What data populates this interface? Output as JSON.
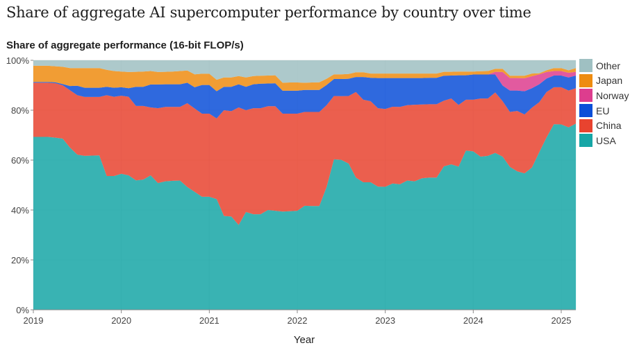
{
  "chart_data": {
    "type": "area",
    "stacked": true,
    "title": "Share of aggregate AI supercomputer performance by country over time",
    "ylabel": "Share of aggregate performance (16-bit FLOP/s)",
    "xlabel": "Year",
    "ylim": [
      0,
      100
    ],
    "xlim": [
      "2019-01",
      "2025-03"
    ],
    "yticks": [
      "0%",
      "20%",
      "40%",
      "60%",
      "80%",
      "100%"
    ],
    "xticks": [
      "2019",
      "2020",
      "2021",
      "2022",
      "2023",
      "2024",
      "2025"
    ],
    "grid": true,
    "legend_position": "right",
    "x_start": "2019-01",
    "x_step": "1 month",
    "series": [
      {
        "name": "USA",
        "color": "#16a6a6",
        "values": [
          69.3,
          69.3,
          69.3,
          69.0,
          68.6,
          65.0,
          62.2,
          61.7,
          61.8,
          61.9,
          53.6,
          53.6,
          54.5,
          53.9,
          51.9,
          52.2,
          53.9,
          50.8,
          51.5,
          51.7,
          51.8,
          49.2,
          47.3,
          45.3,
          45.3,
          44.4,
          37.6,
          37.4,
          34.0,
          39.2,
          38.3,
          38.3,
          40.0,
          39.7,
          39.4,
          39.5,
          39.7,
          41.7,
          41.6,
          41.6,
          49.2,
          60.3,
          60.1,
          58.6,
          53.0,
          51.1,
          51.1,
          49.4,
          49.3,
          50.6,
          50.3,
          51.8,
          51.5,
          52.7,
          53.0,
          53.0,
          57.5,
          58.3,
          57.4,
          63.8,
          63.5,
          61.4,
          61.7,
          62.9,
          61.4,
          57.3,
          55.5,
          54.7,
          57.0,
          63.1,
          69.1,
          74.4,
          74.3,
          73.1,
          74.6
        ]
      },
      {
        "name": "China",
        "color": "#e8432f",
        "values": [
          21.7,
          21.7,
          21.7,
          21.8,
          21.4,
          23.0,
          23.8,
          23.6,
          23.5,
          23.4,
          32.4,
          31.8,
          31.3,
          31.5,
          29.8,
          29.5,
          27.2,
          30.0,
          29.8,
          29.6,
          29.5,
          33.6,
          33.4,
          33.3,
          33.3,
          32.3,
          42.4,
          42.2,
          47.1,
          40.8,
          42.5,
          42.5,
          41.6,
          41.9,
          39.2,
          39.1,
          38.9,
          37.6,
          37.7,
          37.7,
          32.8,
          25.4,
          25.5,
          27.1,
          34.3,
          33.1,
          32.5,
          31.4,
          31.2,
          30.8,
          31.0,
          30.2,
          30.7,
          29.6,
          29.4,
          29.4,
          26.3,
          26.4,
          24.7,
          20.4,
          20.7,
          23.3,
          23.0,
          24.2,
          22.2,
          22.0,
          24.2,
          23.6,
          24.0,
          20.1,
          18.2,
          14.8,
          14.9,
          14.8,
          14.2
        ]
      },
      {
        "name": "EU",
        "color": "#0a4fd8",
        "values": [
          0.3,
          0.3,
          0.3,
          0.4,
          0.5,
          1.7,
          3.8,
          3.7,
          3.7,
          3.7,
          3.4,
          3.6,
          3.4,
          3.4,
          7.7,
          7.7,
          9.2,
          9.5,
          9.1,
          9.1,
          9.1,
          8.2,
          8.5,
          11.5,
          11.5,
          10.9,
          9.4,
          9.8,
          9.3,
          9.4,
          9.6,
          9.8,
          9.1,
          9.2,
          9.2,
          9.2,
          9.2,
          8.8,
          8.8,
          8.8,
          8.1,
          6.8,
          6.9,
          6.9,
          6.0,
          9.1,
          9.4,
          12.1,
          12.4,
          11.5,
          11.6,
          10.9,
          10.7,
          10.6,
          10.6,
          10.6,
          10.0,
          9.2,
          11.9,
          9.8,
          10.1,
          9.6,
          9.6,
          7.2,
          6.3,
          8.6,
          8.2,
          9.3,
          7.8,
          7.2,
          5.4,
          4.7,
          4.7,
          5.2,
          5.1
        ]
      },
      {
        "name": "Norway",
        "color": "#dd3d8e",
        "values": [
          0,
          0,
          0,
          0,
          0,
          0,
          0,
          0,
          0,
          0,
          0,
          0,
          0,
          0,
          0,
          0,
          0,
          0,
          0,
          0,
          0,
          0,
          0,
          0,
          0,
          0,
          0,
          0,
          0,
          0,
          0,
          0,
          0,
          0,
          0,
          0,
          0,
          0,
          0,
          0,
          0,
          0,
          0,
          0,
          0,
          0,
          0,
          0,
          0,
          0,
          0,
          0,
          0,
          0,
          0,
          0,
          0,
          0,
          0,
          0,
          0,
          0,
          0,
          1.1,
          5.4,
          5.0,
          5.0,
          5.2,
          4.8,
          4.0,
          2.6,
          1.8,
          1.8,
          1.9,
          1.5
        ]
      },
      {
        "name": "Japan",
        "color": "#ee8c10",
        "values": [
          6.5,
          6.5,
          6.5,
          6.4,
          6.9,
          7.2,
          7.1,
          7.9,
          7.9,
          7.9,
          6.8,
          6.7,
          6.3,
          6.5,
          6.0,
          6.1,
          5.4,
          5.0,
          5.0,
          5.1,
          5.3,
          4.9,
          5.2,
          4.5,
          4.5,
          4.6,
          3.7,
          3.7,
          3.3,
          3.7,
          3.3,
          3.2,
          3.2,
          3.2,
          3.2,
          3.3,
          3.3,
          2.9,
          3.0,
          3.1,
          2.5,
          1.9,
          1.9,
          1.9,
          1.9,
          1.9,
          1.7,
          1.8,
          1.8,
          1.8,
          1.8,
          1.8,
          1.8,
          1.8,
          1.7,
          1.7,
          1.6,
          1.5,
          1.5,
          1.5,
          1.2,
          1.3,
          1.4,
          1.2,
          1.3,
          0.9,
          0.9,
          1.0,
          1.1,
          0.4,
          0.7,
          1.2,
          1.2,
          1.0,
          1.5
        ]
      },
      {
        "name": "Other",
        "color": "#9fc0c2",
        "values": [
          2.2,
          2.2,
          2.2,
          2.4,
          2.6,
          3.1,
          3.1,
          3.1,
          3.1,
          3.1,
          3.8,
          4.3,
          4.5,
          4.7,
          4.6,
          4.5,
          4.3,
          4.7,
          4.6,
          4.5,
          4.3,
          4.1,
          5.6,
          5.4,
          5.4,
          7.8,
          6.9,
          6.9,
          6.3,
          6.9,
          6.3,
          6.2,
          6.1,
          6.0,
          9.0,
          8.9,
          8.9,
          9.0,
          8.9,
          8.8,
          7.4,
          5.6,
          5.6,
          5.5,
          4.8,
          4.8,
          5.3,
          5.3,
          5.3,
          5.3,
          5.3,
          5.3,
          5.3,
          5.3,
          5.3,
          5.3,
          4.6,
          4.6,
          4.5,
          4.5,
          4.5,
          4.4,
          4.3,
          3.4,
          3.4,
          6.2,
          6.2,
          6.2,
          5.3,
          5.2,
          4.0,
          3.1,
          3.1,
          4.0,
          3.1
        ]
      }
    ],
    "legend_order": [
      "Other",
      "Japan",
      "Norway",
      "EU",
      "China",
      "USA"
    ]
  }
}
